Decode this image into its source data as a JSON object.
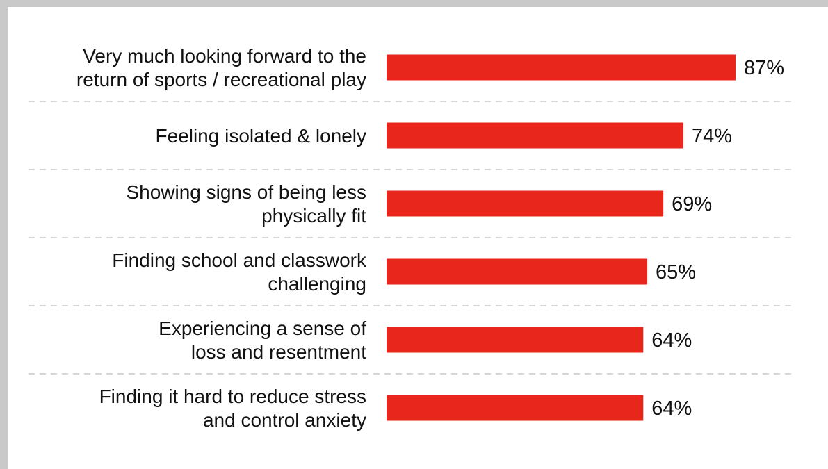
{
  "chart_data": {
    "type": "bar",
    "orientation": "horizontal",
    "categories": [
      [
        "Very much looking forward to the",
        "return of sports / recreational play"
      ],
      [
        "Feeling isolated & lonely"
      ],
      [
        "Showing signs of being less",
        "physically fit"
      ],
      [
        "Finding school and classwork",
        "challenging"
      ],
      [
        "Experiencing a sense of",
        "loss and resentment"
      ],
      [
        "Finding it hard to reduce stress",
        "and control anxiety"
      ]
    ],
    "values": [
      87,
      74,
      69,
      65,
      64,
      64
    ],
    "value_labels": [
      "87%",
      "74%",
      "69%",
      "65%",
      "64%",
      "64%"
    ],
    "xlim": [
      0,
      100
    ],
    "bar_color": "#e8261c",
    "separator_color": "#c8c8c8",
    "grid": false,
    "legend": "none"
  }
}
